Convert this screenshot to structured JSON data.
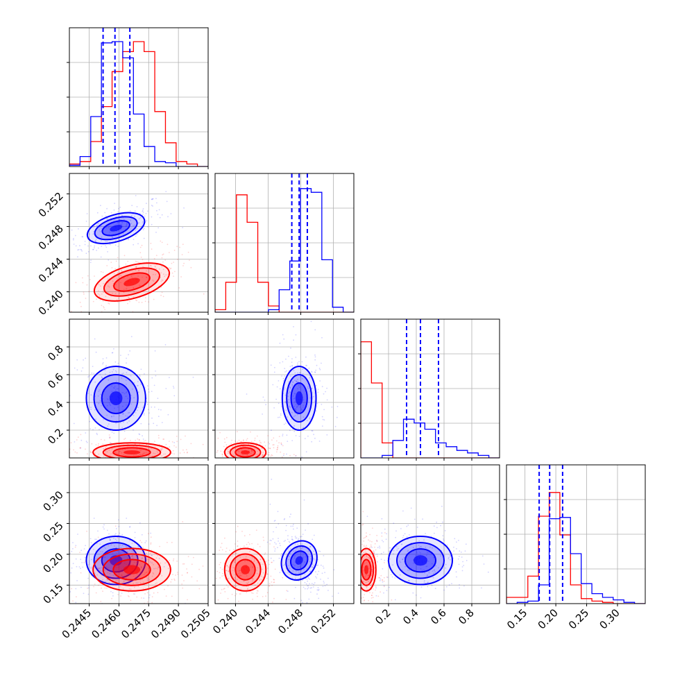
{
  "chart_data": {
    "type": "corner",
    "grid": true,
    "colors": {
      "series_a": "#0000ff",
      "series_b": "#ff0000",
      "grid": "#b0b0b0"
    },
    "series": [
      {
        "color": "#0000ff",
        "mean": [
          0.24585,
          0.2478,
          0.43,
          0.19
        ],
        "std": [
          0.00065,
          0.0009,
          0.1,
          0.017
        ]
      },
      {
        "color": "#ff0000",
        "mean": [
          0.24665,
          0.2412,
          0.04,
          0.175
        ],
        "std": [
          0.00085,
          0.0011,
          0.03,
          0.015
        ]
      }
    ],
    "parameters": [
      {
        "range": [
          0.2435,
          0.2505
        ],
        "ticks": [
          0.2445,
          0.246,
          0.2475,
          0.249,
          0.2505
        ],
        "tick_labels": [
          "0.2445",
          "0.2460",
          "0.2475",
          "0.2490",
          "0.2505"
        ],
        "quantiles_series_a": [
          0.2452,
          0.2458,
          0.24655
        ],
        "hist_series_a": [
          0.01,
          0.08,
          0.4,
          0.99,
          1.0,
          0.87,
          0.42,
          0.16,
          0.04,
          0.03,
          0.0,
          0.0,
          0.0
        ],
        "hist_series_b": [
          0.02,
          0.04,
          0.2,
          0.48,
          0.76,
          0.92,
          1.0,
          0.92,
          0.44,
          0.19,
          0.04,
          0.02,
          0.0
        ]
      },
      {
        "range": [
          0.2375,
          0.2545
        ],
        "ticks": [
          0.24,
          0.244,
          0.248,
          0.252
        ],
        "tick_labels": [
          "0.240",
          "0.244",
          "0.248",
          "0.252"
        ],
        "quantiles_series_a": [
          0.2469,
          0.2478,
          0.2488
        ],
        "hist_series_a": [
          0.0,
          0.0,
          0.0,
          0.0,
          0.0,
          0.02,
          0.18,
          0.41,
          0.99,
          0.96,
          0.42,
          0.04,
          0.0
        ],
        "hist_series_b": [
          0.02,
          0.24,
          0.94,
          0.72,
          0.24,
          0.05,
          0.0,
          0.0,
          0.0,
          0.0,
          0.0,
          0.0,
          0.0
        ]
      },
      {
        "range": [
          0.0,
          1.0
        ],
        "ticks": [
          0.2,
          0.4,
          0.6,
          0.8
        ],
        "tick_labels": [
          "0.2",
          "0.4",
          "0.6",
          "0.8"
        ],
        "quantiles_series_a": [
          0.33,
          0.43,
          0.56
        ],
        "hist_series_a": [
          0.0,
          0.0,
          0.02,
          0.14,
          0.31,
          0.28,
          0.23,
          0.12,
          0.09,
          0.06,
          0.04,
          0.02,
          0.0
        ],
        "hist_series_b": [
          0.93,
          0.6,
          0.12,
          0.0,
          0.0,
          0.0,
          0.0,
          0.0,
          0.0,
          0.0,
          0.0,
          0.0,
          0.0
        ]
      },
      {
        "range": [
          0.12,
          0.345
        ],
        "ticks": [
          0.15,
          0.2,
          0.25,
          0.3
        ],
        "tick_labels": [
          "0.15",
          "0.20",
          "0.25",
          "0.30"
        ],
        "quantiles_series_a": [
          0.173,
          0.19,
          0.211
        ],
        "hist_series_a": [
          0.0,
          0.01,
          0.02,
          0.15,
          0.68,
          0.69,
          0.4,
          0.16,
          0.08,
          0.05,
          0.03,
          0.01,
          0.0
        ],
        "hist_series_b": [
          0.05,
          0.05,
          0.22,
          0.7,
          0.89,
          0.55,
          0.15,
          0.04,
          0.02,
          0.01,
          0.0,
          0.0,
          0.0
        ]
      }
    ]
  }
}
